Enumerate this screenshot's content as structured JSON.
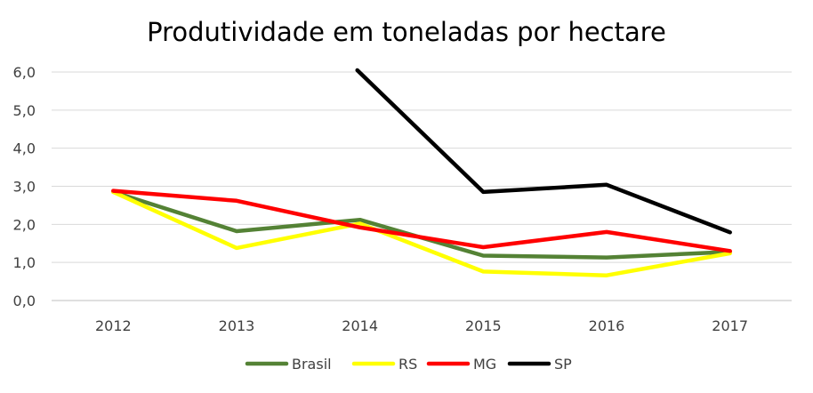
{
  "chart_data": {
    "type": "line",
    "title": "Produtividade em toneladas por hectare",
    "xlabel": "",
    "ylabel": "",
    "categories": [
      "2012",
      "2013",
      "2014",
      "2015",
      "2016",
      "2017"
    ],
    "ylim": [
      0,
      6
    ],
    "yticks": [
      "0,0",
      "1,0",
      "2,0",
      "3,0",
      "4,0",
      "5,0",
      "6,0"
    ],
    "grid": true,
    "legend": "bottom",
    "series": [
      {
        "name": "Brasil",
        "color": "#548235",
        "values": [
          2.85,
          1.82,
          2.12,
          1.18,
          1.13,
          1.28
        ]
      },
      {
        "name": "RS",
        "color": "#ffff00",
        "values": [
          2.85,
          1.38,
          2.02,
          0.76,
          0.66,
          1.24
        ]
      },
      {
        "name": "MG",
        "color": "#ff0000",
        "values": [
          2.88,
          2.62,
          1.92,
          1.4,
          1.8,
          1.3
        ]
      },
      {
        "name": "SP",
        "color": "#000000",
        "values": [
          null,
          null,
          6.0,
          2.85,
          3.04,
          1.79
        ],
        "clipped_above_axis_at": "2014"
      }
    ]
  }
}
